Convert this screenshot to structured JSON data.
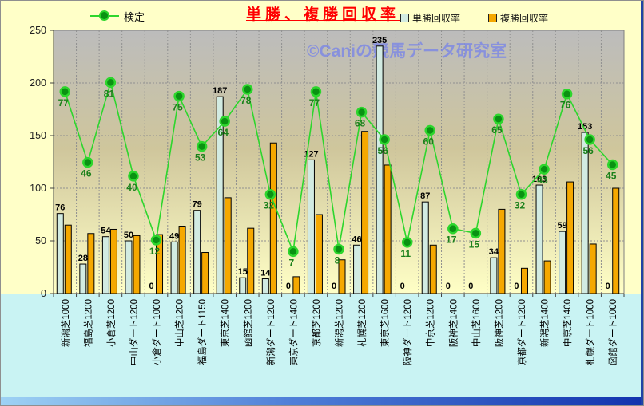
{
  "header": {
    "title": "単勝、複勝回収率"
  },
  "watermark": "©Caniの競馬データ研究室",
  "legend": {
    "kentei": "検定",
    "win": "単勝回収率",
    "place": "複勝回収率"
  },
  "colors": {
    "background": "#ffffc8",
    "label_band": "#c9f3f3",
    "plot_gradient_top": "#bcbcbc",
    "plot_gradient_mid": "#cfc69c",
    "plot_gradient_bottom": "#ffffc6",
    "win_bar": "#d2ebe2",
    "place_bar": "#f5a800",
    "line": "#2dd62d",
    "marker": "#0a9212",
    "line_label": "#1a801a",
    "bar_label": "#000000",
    "title": "#ff0000",
    "watermark": "#7b87e6",
    "axis": "#404040",
    "grid": "#909090"
  },
  "chart_data": {
    "type": "bar",
    "title": "単勝、複勝回収率",
    "categories": [
      "新潟芝1000",
      "福島芝1200",
      "小倉芝1200",
      "中山ダート1200",
      "小倉ダート1000",
      "中山芝1200",
      "福島ダート1150",
      "東京芝1400",
      "函館芝1200",
      "新潟ダート1200",
      "東京ダート1400",
      "京都芝1200",
      "新潟芝1200",
      "札幌芝1200",
      "東京芝1600",
      "阪神ダート1200",
      "中京芝1200",
      "阪神芝1400",
      "中山芝1600",
      "阪神芝1200",
      "京都ダート1200",
      "新潟芝1400",
      "中京芝1400",
      "札幌ダート1000",
      "函館ダート1000"
    ],
    "series": [
      {
        "name": "単勝回収率",
        "type": "bar",
        "color": "#d2ebe2",
        "values": [
          76,
          28,
          54,
          50,
          0,
          49,
          79,
          187,
          15,
          14,
          0,
          127,
          0,
          46,
          235,
          0,
          87,
          0,
          0,
          34,
          0,
          103,
          59,
          153,
          0
        ],
        "labels_shown": true
      },
      {
        "name": "複勝回収率",
        "type": "bar",
        "color": "#f5a800",
        "values": [
          65,
          57,
          61,
          55,
          56,
          64,
          39,
          91,
          62,
          143,
          16,
          75,
          32,
          154,
          122,
          0,
          46,
          0,
          0,
          80,
          24,
          31,
          106,
          47,
          100
        ],
        "labels_shown": false
      },
      {
        "name": "検定",
        "type": "line",
        "color": "#2dd62d",
        "axis": "secondary",
        "values": [
          77,
          46,
          81,
          40,
          12,
          75,
          53,
          64,
          78,
          32,
          7,
          77,
          8,
          68,
          56,
          11,
          60,
          17,
          15,
          65,
          32,
          43,
          76,
          56,
          45
        ],
        "labels_shown": true
      }
    ],
    "ylim": [
      0,
      250
    ],
    "y_ticks": [
      0,
      50,
      100,
      150,
      200,
      250
    ],
    "grid": true,
    "legend_position": "top",
    "line_mapping": {
      "a": 2.17,
      "b": 24.7
    }
  }
}
